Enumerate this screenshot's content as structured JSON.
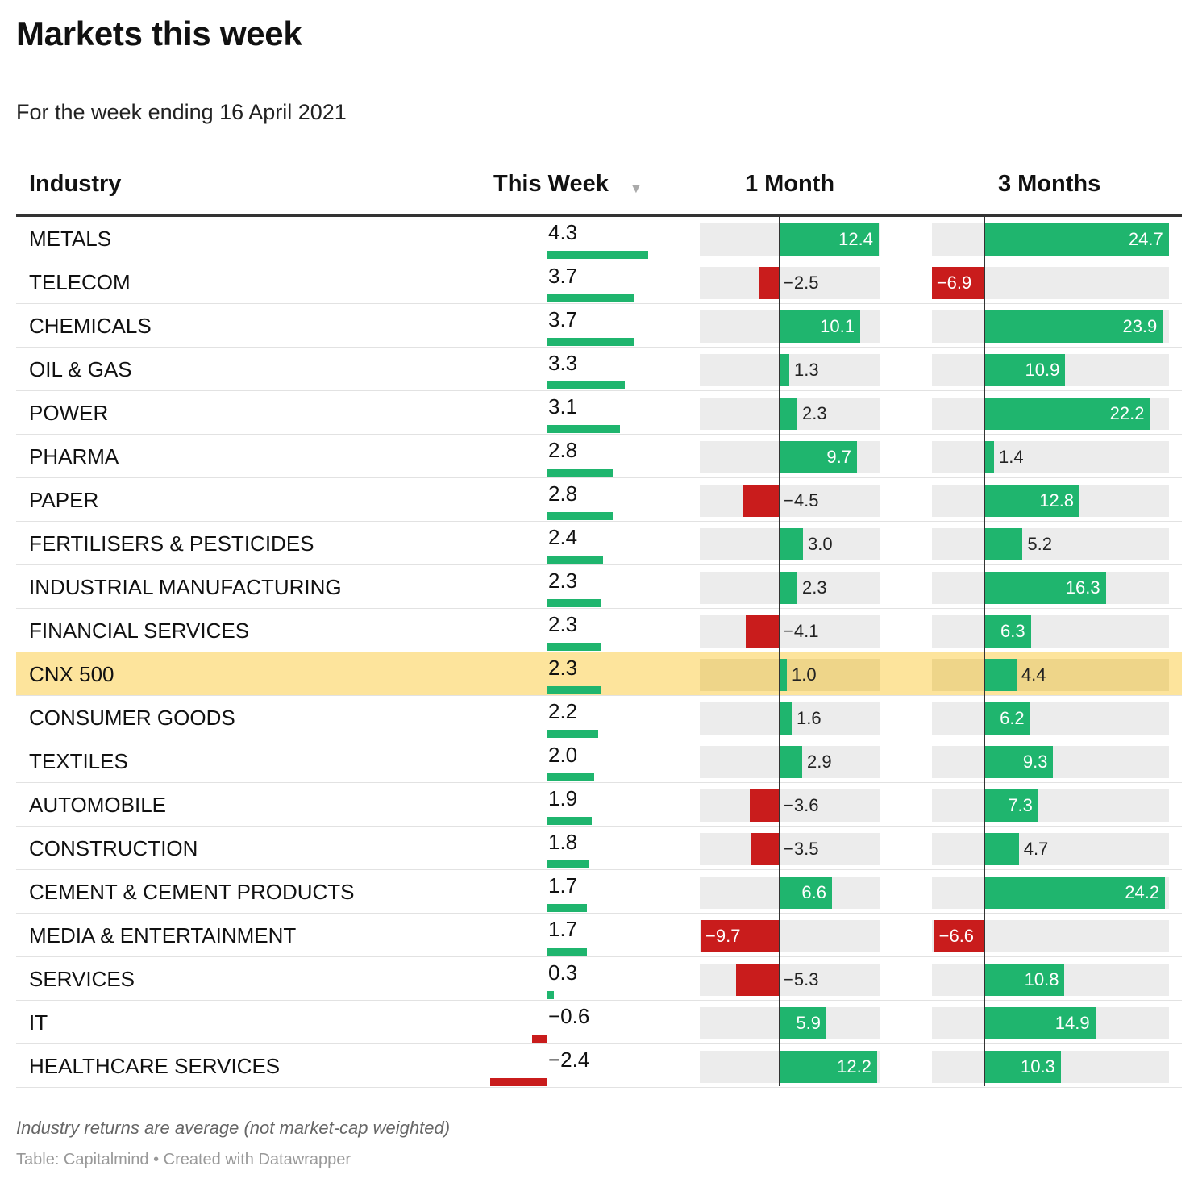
{
  "title": "Markets this week",
  "subtitle": "For the week ending 16 April 2021",
  "notes": "Industry returns are average (not market-cap weighted)",
  "source": "Table: Capitalmind • Created with Datawrapper",
  "colors": {
    "positive": "#1fb56e",
    "negative": "#c91c1c",
    "highlight": "#fde49c",
    "track": "#ececec"
  },
  "sort_icon": "sort-descending-triangle-icon",
  "chart_data": {
    "type": "table",
    "columns": [
      "Industry",
      "This Week",
      "1 Month",
      "3 Months"
    ],
    "sorted_by": "This Week",
    "highlighted_row": "CNX 500",
    "rows": [
      {
        "industry": "METALS",
        "week": "4.3",
        "month": "12.4",
        "months3": "24.7"
      },
      {
        "industry": "TELECOM",
        "week": "3.7",
        "month": "−2.5",
        "months3": "−6.9"
      },
      {
        "industry": "CHEMICALS",
        "week": "3.7",
        "month": "10.1",
        "months3": "23.9"
      },
      {
        "industry": "OIL & GAS",
        "week": "3.3",
        "month": "1.3",
        "months3": "10.9"
      },
      {
        "industry": "POWER",
        "week": "3.1",
        "month": "2.3",
        "months3": "22.2"
      },
      {
        "industry": "PHARMA",
        "week": "2.8",
        "month": "9.7",
        "months3": "1.4"
      },
      {
        "industry": "PAPER",
        "week": "2.8",
        "month": "−4.5",
        "months3": "12.8"
      },
      {
        "industry": "FERTILISERS & PESTICIDES",
        "week": "2.4",
        "month": "3.0",
        "months3": "5.2"
      },
      {
        "industry": "INDUSTRIAL MANUFACTURING",
        "week": "2.3",
        "month": "2.3",
        "months3": "16.3"
      },
      {
        "industry": "FINANCIAL SERVICES",
        "week": "2.3",
        "month": "−4.1",
        "months3": "6.3"
      },
      {
        "industry": "CNX 500",
        "week": "2.3",
        "month": "1.0",
        "months3": "4.4"
      },
      {
        "industry": "CONSUMER GOODS",
        "week": "2.2",
        "month": "1.6",
        "months3": "6.2"
      },
      {
        "industry": "TEXTILES",
        "week": "2.0",
        "month": "2.9",
        "months3": "9.3"
      },
      {
        "industry": "AUTOMOBILE",
        "week": "1.9",
        "month": "−3.6",
        "months3": "7.3"
      },
      {
        "industry": "CONSTRUCTION",
        "week": "1.8",
        "month": "−3.5",
        "months3": "4.7"
      },
      {
        "industry": "CEMENT & CEMENT PRODUCTS",
        "week": "1.7",
        "month": "6.6",
        "months3": "24.2"
      },
      {
        "industry": "MEDIA & ENTERTAINMENT",
        "week": "1.7",
        "month": "−9.7",
        "months3": "−6.6"
      },
      {
        "industry": "SERVICES",
        "week": "0.3",
        "month": "−5.3",
        "months3": "10.8"
      },
      {
        "industry": "IT",
        "week": "−0.6",
        "month": "5.9",
        "months3": "14.9"
      },
      {
        "industry": "HEALTHCARE SERVICES",
        "week": "−2.4",
        "month": "12.2",
        "months3": "10.3"
      }
    ]
  }
}
